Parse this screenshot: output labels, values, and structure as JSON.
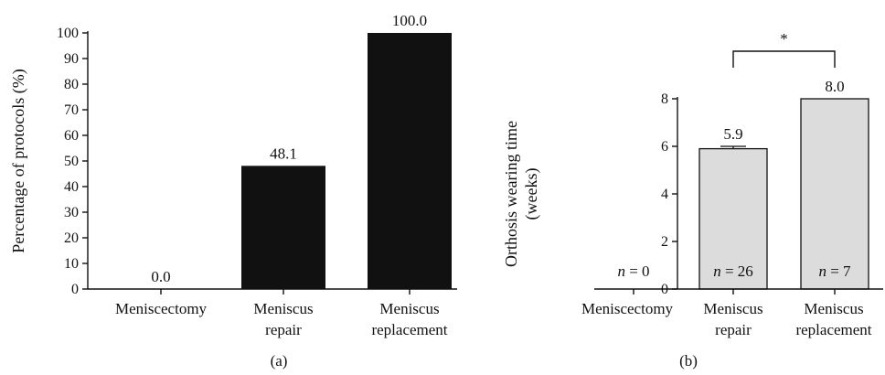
{
  "chart_data": [
    {
      "type": "bar",
      "panel_label": "(a)",
      "categories": [
        [
          "Meniscectomy"
        ],
        [
          "Meniscus",
          "repair"
        ],
        [
          "Meniscus",
          "replacement"
        ]
      ],
      "values": [
        0.0,
        48.1,
        100.0
      ],
      "value_labels": [
        "0.0",
        "48.1",
        "100.0"
      ],
      "ylabel": "Percentage of protocols (%)",
      "ylim": [
        0,
        100
      ],
      "yticks": [
        0,
        10,
        20,
        30,
        40,
        50,
        60,
        70,
        80,
        90,
        100
      ],
      "bar_color": "#111111",
      "grid": false
    },
    {
      "type": "bar",
      "panel_label": "(b)",
      "categories": [
        [
          "Meniscectomy"
        ],
        [
          "Meniscus",
          "repair"
        ],
        [
          "Meniscus",
          "replacement"
        ]
      ],
      "values": [
        0,
        5.9,
        8.0
      ],
      "errors": [
        0,
        0.1,
        0
      ],
      "value_labels": [
        "",
        "5.9",
        "8.0"
      ],
      "n_labels": [
        "n = 0",
        "n = 26",
        "n = 7"
      ],
      "ylabel": [
        "Orthosis wearing time",
        "(weeks)"
      ],
      "ylim": [
        0,
        8
      ],
      "yticks": [
        0,
        2,
        4,
        6,
        8
      ],
      "bar_color": "#dcdcdc",
      "significance": {
        "between": [
          1,
          2
        ],
        "label": "*"
      },
      "grid": false
    }
  ]
}
